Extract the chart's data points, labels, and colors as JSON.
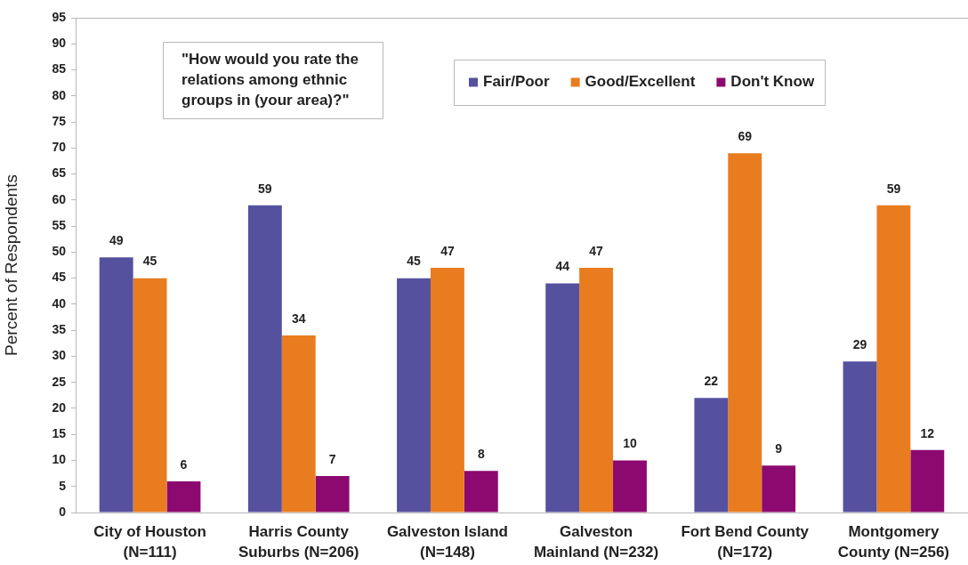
{
  "chart_data": {
    "type": "bar",
    "ylabel": "Percent of Respondents",
    "categories": [
      "City of Houston (N=111)",
      "Harris County Suburbs (N=206)",
      "Galveston Island (N=148)",
      "Galveston Mainland (N=232)",
      "Fort Bend County (N=172)",
      "Montgomery County (N=256)"
    ],
    "series": [
      {
        "name": "Fair/Poor",
        "color": "#56519f",
        "values": [
          49,
          59,
          45,
          44,
          22,
          29
        ]
      },
      {
        "name": "Good/Excellent",
        "color": "#e87c1e",
        "values": [
          45,
          34,
          47,
          47,
          69,
          59
        ]
      },
      {
        "name": "Don't Know",
        "color": "#8c0a70",
        "values": [
          6,
          7,
          8,
          10,
          9,
          12
        ]
      }
    ],
    "ylim": [
      0,
      95
    ],
    "yticks": [
      0,
      5,
      10,
      15,
      20,
      25,
      30,
      35,
      40,
      45,
      50,
      55,
      60,
      65,
      70,
      75,
      80,
      85,
      90,
      95
    ],
    "grid": false,
    "legend": "top",
    "data_labels": true,
    "annotations": [
      "\"How would you rate the relations among ethnic groups in (your area)?\""
    ]
  }
}
